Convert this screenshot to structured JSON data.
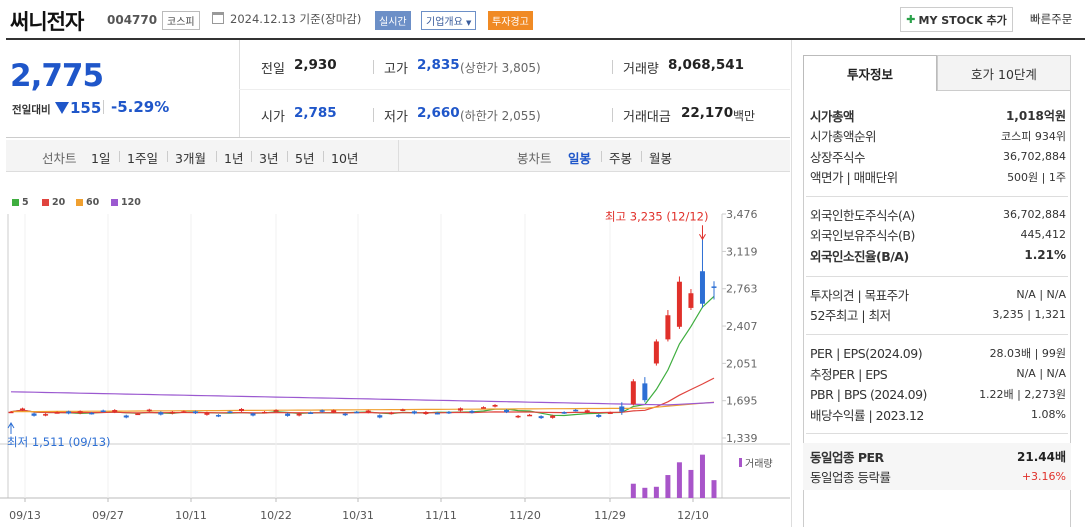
{
  "header": {
    "title": "써니전자",
    "code": "004770",
    "market": "코스피",
    "date": "2024.12.13  기준(장마감)",
    "realtime": "실시간",
    "company_overview": "기업개요",
    "warning": "투자경고",
    "mystock_button": "MY STOCK 추가",
    "quick_order": "빠른주문"
  },
  "price": {
    "current": "2,775",
    "change_label": "전일대비",
    "change": "155",
    "change_pct": "-5.29%",
    "prev_close_label": "전일",
    "prev_close": "2,930",
    "high_label": "고가",
    "high": "2,835",
    "upper_limit": "(상한가 3,805)",
    "volume_label": "거래량",
    "volume": "8,068,541",
    "open_label": "시가",
    "open": "2,785",
    "low_label": "저가",
    "low": "2,660",
    "lower_limit": "(하한가 2,055)",
    "amount_label": "거래대금",
    "amount": "22,170",
    "amount_unit": "백만"
  },
  "period_tabs": {
    "line_chart": "선차트",
    "periods": [
      "1일",
      "1주일",
      "3개월",
      "1년",
      "3년",
      "5년",
      "10년"
    ],
    "candle_chart": "봉차트",
    "candles": [
      "일봉",
      "주봉",
      "월봉"
    ],
    "selected_candle": "일봉"
  },
  "legend": [
    {
      "label": "5",
      "color": "#3fae3f"
    },
    {
      "label": "20",
      "color": "#e0443e"
    },
    {
      "label": "60",
      "color": "#f0a030"
    },
    {
      "label": "120",
      "color": "#9b59d0"
    }
  ],
  "chart_data": {
    "type": "candlestick",
    "y_ticks": [
      "3,476",
      "3,119",
      "2,763",
      "2,407",
      "2,051",
      "1,695",
      "1,339"
    ],
    "ylim": [
      1339,
      3476
    ],
    "x_ticks": [
      "09/13",
      "09/27",
      "10/11",
      "10/22",
      "10/31",
      "11/11",
      "11/20",
      "11/29",
      "12/10"
    ],
    "high_annotation": "최고 3,235 (12/12)",
    "low_annotation": "최저 1,511 (09/13)",
    "volume_label": "거래량",
    "up_color": "#e0302a",
    "down_color": "#2d6fd4"
  },
  "right_panel": {
    "tabs": [
      "투자정보",
      "호가 10단계"
    ],
    "rows1": [
      {
        "k": "시가총액",
        "v": "1,018억원",
        "bold": true
      },
      {
        "k": "시가총액순위",
        "v": "코스피 934위"
      },
      {
        "k": "상장주식수",
        "v": "36,702,884"
      },
      {
        "k": "액면가 | 매매단위",
        "v": "500원 | 1주"
      }
    ],
    "rows2": [
      {
        "k": "외국인한도주식수(A)",
        "v": "36,702,884"
      },
      {
        "k": "외국인보유주식수(B)",
        "v": "445,412"
      },
      {
        "k": "외국인소진율(B/A)",
        "v": "1.21%",
        "bold": true
      }
    ],
    "rows3": [
      {
        "k": "투자의견 | 목표주가",
        "v": "N/A | N/A"
      },
      {
        "k": "52주최고 | 최저",
        "v": "3,235 | 1,321"
      }
    ],
    "rows4": [
      {
        "k": "PER | EPS(2024.09)",
        "v": "28.03배 | 99원"
      },
      {
        "k": "추정PER | EPS",
        "v": "N/A | N/A"
      },
      {
        "k": "PBR | BPS (2024.09)",
        "v": "1.22배 | 2,273원"
      },
      {
        "k": "배당수익률 | 2023.12",
        "v": "1.08%"
      }
    ],
    "peer_per_label": "동일업종 PER",
    "peer_per": "21.44배",
    "peer_rate_label": "동일업종 등락률",
    "peer_rate": "+3.16%"
  }
}
